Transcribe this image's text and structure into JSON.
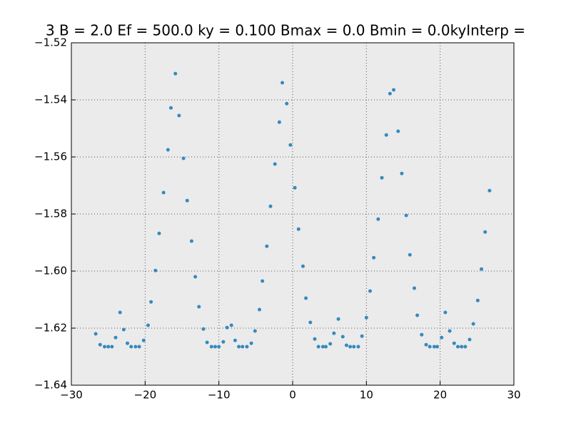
{
  "chart_data": {
    "type": "scatter",
    "title": "3 B = 2.0 Ef = 500.0 ky = 0.100 Bmax = 0.0 Bmin = 0.0kyInterp =",
    "x": [
      -26.7,
      -26.1,
      -25.5,
      -25.0,
      -24.5,
      -24.0,
      -23.4,
      -22.9,
      -22.4,
      -21.9,
      -21.3,
      -20.8,
      -20.2,
      -19.6,
      -19.2,
      -18.6,
      -18.1,
      -17.5,
      -16.9,
      -16.5,
      -15.9,
      -15.4,
      -14.8,
      -14.3,
      -13.7,
      -13.2,
      -12.7,
      -12.1,
      -11.6,
      -11.0,
      -10.5,
      -10.0,
      -9.4,
      -8.9,
      -8.3,
      -7.8,
      -7.3,
      -6.8,
      -6.2,
      -5.6,
      -5.1,
      -4.5,
      -4.1,
      -3.5,
      -3.0,
      -2.4,
      -1.8,
      -1.4,
      -0.8,
      -0.3,
      0.3,
      0.8,
      1.4,
      1.8,
      2.4,
      3.0,
      3.5,
      4.1,
      4.5,
      5.1,
      5.6,
      6.2,
      6.8,
      7.3,
      7.8,
      8.3,
      8.9,
      9.4,
      10.0,
      10.5,
      11.0,
      11.6,
      12.1,
      12.7,
      13.2,
      13.7,
      14.3,
      14.8,
      15.4,
      15.9,
      16.5,
      16.9,
      17.5,
      18.1,
      18.6,
      19.2,
      19.6,
      20.2,
      20.7,
      21.3,
      21.9,
      22.4,
      22.9,
      23.4,
      24.0,
      24.5,
      25.1,
      25.6,
      26.1,
      26.7
    ],
    "values": [
      -1.622,
      -1.6258,
      -1.6265,
      -1.6265,
      -1.6265,
      -1.6233,
      -1.6145,
      -1.6205,
      -1.6253,
      -1.6265,
      -1.6265,
      -1.6265,
      -1.6243,
      -1.619,
      -1.6108,
      -1.5998,
      -1.5868,
      -1.5725,
      -1.5575,
      -1.5428,
      -1.5308,
      -1.5455,
      -1.5605,
      -1.5753,
      -1.5895,
      -1.602,
      -1.6125,
      -1.6203,
      -1.625,
      -1.6265,
      -1.6265,
      -1.6265,
      -1.6248,
      -1.6198,
      -1.619,
      -1.6243,
      -1.6265,
      -1.6265,
      -1.6265,
      -1.6253,
      -1.621,
      -1.6135,
      -1.6035,
      -1.5913,
      -1.5773,
      -1.5625,
      -1.5478,
      -1.534,
      -1.5413,
      -1.5558,
      -1.5708,
      -1.5853,
      -1.5983,
      -1.6095,
      -1.618,
      -1.6238,
      -1.6265,
      -1.6265,
      -1.6265,
      -1.6255,
      -1.6218,
      -1.6168,
      -1.623,
      -1.626,
      -1.6265,
      -1.6265,
      -1.6265,
      -1.6228,
      -1.6163,
      -1.607,
      -1.5953,
      -1.5818,
      -1.5673,
      -1.5523,
      -1.5378,
      -1.5365,
      -1.551,
      -1.5658,
      -1.5805,
      -1.5943,
      -1.606,
      -1.6155,
      -1.6223,
      -1.6258,
      -1.6265,
      -1.6265,
      -1.6265,
      -1.6233,
      -1.6145,
      -1.621,
      -1.6253,
      -1.6265,
      -1.6265,
      -1.6265,
      -1.624,
      -1.6185,
      -1.6103,
      -1.5993,
      -1.5863,
      -1.5718
    ],
    "color": "#348abd",
    "xlim": [
      -30,
      30
    ],
    "ylim": [
      -1.64,
      -1.52
    ],
    "xticks": [
      {
        "value": -30,
        "label": "−30"
      },
      {
        "value": -20,
        "label": "−20"
      },
      {
        "value": -10,
        "label": "−10"
      },
      0,
      10,
      20,
      30
    ],
    "yticks": [
      {
        "value": -1.64,
        "label": "−1.64"
      },
      {
        "value": -1.62,
        "label": "−1.62"
      },
      {
        "value": -1.6,
        "label": "−1.60"
      },
      {
        "value": -1.58,
        "label": "−1.58"
      },
      {
        "value": -1.56,
        "label": "−1.56"
      },
      {
        "value": -1.54,
        "label": "−1.54"
      },
      {
        "value": -1.52,
        "label": "−1.52"
      }
    ],
    "grid": true
  }
}
